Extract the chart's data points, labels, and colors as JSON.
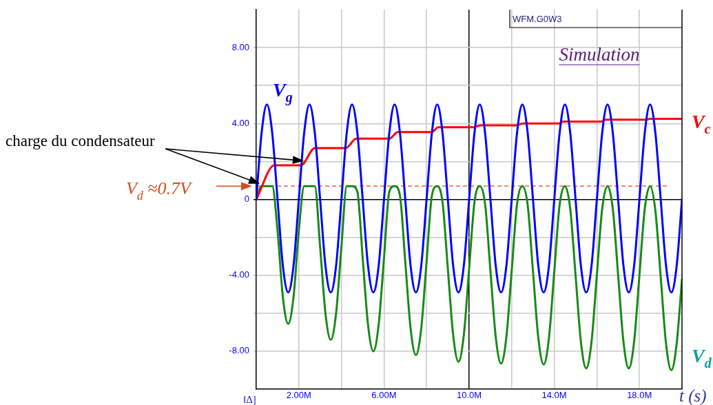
{
  "chart_data": {
    "type": "line",
    "title": "Simulation",
    "xlabel": "t (s)",
    "x": [
      0,
      0.25,
      0.5,
      0.75,
      1,
      1.25,
      1.5,
      1.75,
      2,
      2.25,
      2.5,
      2.75,
      3,
      3.25,
      3.5,
      3.75,
      4,
      4.25,
      4.5,
      4.75,
      5,
      5.25,
      5.5,
      5.75,
      6,
      6.25,
      6.5,
      6.75,
      7,
      7.25,
      7.5,
      7.75,
      8,
      8.25,
      8.5,
      8.75,
      9,
      9.25,
      9.5,
      9.75,
      10,
      10.25,
      10.5,
      10.75,
      11,
      11.25,
      11.5,
      11.75,
      12,
      12.25,
      12.5,
      12.75,
      13,
      13.25,
      13.5,
      13.75,
      14,
      14.25,
      14.5,
      14.75,
      15,
      15.25,
      15.5,
      15.75,
      16,
      16.25,
      16.5,
      16.75,
      17,
      17.25,
      17.5,
      17.75,
      18,
      18.25,
      18.5,
      18.75,
      19,
      19.25,
      19.5,
      19.75,
      20
    ],
    "series": [
      {
        "name": "V$_{g}$",
        "color": "#0000ff",
        "values": [
          0,
          3.5,
          5,
          3.5,
          0,
          -3.5,
          -4.9,
          -3.5,
          0,
          3.5,
          5,
          3.5,
          0,
          -3.5,
          -4.9,
          -3.5,
          0,
          3.5,
          5,
          3.5,
          0,
          -3.5,
          -4.9,
          -3.5,
          0,
          3.5,
          5,
          3.5,
          0,
          -3.5,
          -4.9,
          -3.5,
          0,
          3.5,
          5,
          3.5,
          0,
          -3.5,
          -4.9,
          -3.5,
          0,
          3.5,
          5,
          3.5,
          0,
          -3.5,
          -4.9,
          -3.5,
          0,
          3.5,
          5,
          3.5,
          0,
          -3.5,
          -4.9,
          -3.5,
          0,
          3.5,
          5,
          3.5,
          0,
          -3.5,
          -4.9,
          -3.5,
          0,
          3.5,
          5,
          3.5,
          0,
          -3.5,
          -4.9,
          -3.5,
          0,
          3.5,
          5,
          3.5,
          0,
          -3.5,
          -4.9,
          -3.5,
          0
        ]
      },
      {
        "name": "V$_{c}$",
        "color": "#ff0000",
        "x": [
          0,
          0.85,
          2.1,
          2.75,
          4.2,
          4.7,
          6.25,
          6.65,
          8.25,
          8.55,
          10.2,
          10.55,
          12.2,
          12.55,
          14.25,
          14.4,
          16.2,
          16.4,
          18.3,
          18.5,
          20
        ],
        "values": [
          0,
          1.8,
          1.8,
          2.7,
          2.7,
          3.2,
          3.2,
          3.55,
          3.55,
          3.8,
          3.8,
          3.9,
          3.9,
          4.0,
          4.0,
          4.1,
          4.1,
          4.2,
          4.2,
          4.25,
          4.25
        ]
      },
      {
        "name": "V$_{d}$",
        "color": "#168a16",
        "values": [
          0,
          0.7,
          0.7,
          0.7,
          -1.65,
          -5.15,
          -6.55,
          -5.15,
          -1.65,
          0.7,
          0.7,
          0.7,
          -2.5,
          -6.0,
          -7.4,
          -6.0,
          -2.5,
          0.7,
          0.7,
          0.4,
          -3.1,
          -6.6,
          -8.0,
          -6.6,
          -3.1,
          0.4,
          0.7,
          0.2,
          -3.3,
          -6.8,
          -8.2,
          -6.8,
          -3.3,
          0.2,
          0.7,
          -0.15,
          -3.65,
          -7.15,
          -8.55,
          -7.15,
          -3.65,
          -0.15,
          0.7,
          -0.25,
          -3.75,
          -7.25,
          -8.65,
          -7.25,
          -3.75,
          -0.25,
          0.7,
          -0.3,
          -3.8,
          -7.3,
          -8.7,
          -7.3,
          -3.8,
          -0.3,
          0.7,
          -0.5,
          -4.0,
          -7.5,
          -8.9,
          -7.5,
          -4.0,
          -0.5,
          0.7,
          -0.5,
          -4.0,
          -7.5,
          -8.9,
          -7.5,
          -4.0,
          -0.5,
          0.7,
          -0.6,
          -4.1,
          -7.6,
          -9.0,
          -7.6,
          -4.2
        ]
      }
    ],
    "xlim": [
      0,
      20
    ],
    "xticks": [
      {
        "value": 2,
        "label": "2.00M"
      },
      {
        "value": 4,
        "label": null
      },
      {
        "value": 6,
        "label": "6.00M"
      },
      {
        "value": 8,
        "label": null
      },
      {
        "value": 10,
        "label": "10.0M"
      },
      {
        "value": 12,
        "label": null
      },
      {
        "value": 14,
        "label": "14.0M"
      },
      {
        "value": 16,
        "label": null
      },
      {
        "value": 18,
        "label": "18.0M"
      }
    ],
    "ylim": [
      -10,
      10
    ],
    "yticks": [
      {
        "value": -8,
        "label": "-8.00"
      },
      {
        "value": -6,
        "label": null
      },
      {
        "value": -4,
        "label": "-4.00"
      },
      {
        "value": -2,
        "label": null
      },
      0,
      {
        "value": 2,
        "label": null
      },
      {
        "value": 4,
        "label": "4.00"
      },
      {
        "value": 6,
        "label": null
      },
      {
        "value": 8,
        "label": "8.00"
      }
    ],
    "grid": true,
    "ref_lines": [
      {
        "axis": "y",
        "value": 0.7,
        "label": "V$_{d}$ ≈0.7V",
        "color": "#d2501e",
        "line_style": "dashed"
      }
    ],
    "annotations": [
      "charge du condensateur",
      "WFM.G0W3",
      "‖Δ]"
    ]
  }
}
